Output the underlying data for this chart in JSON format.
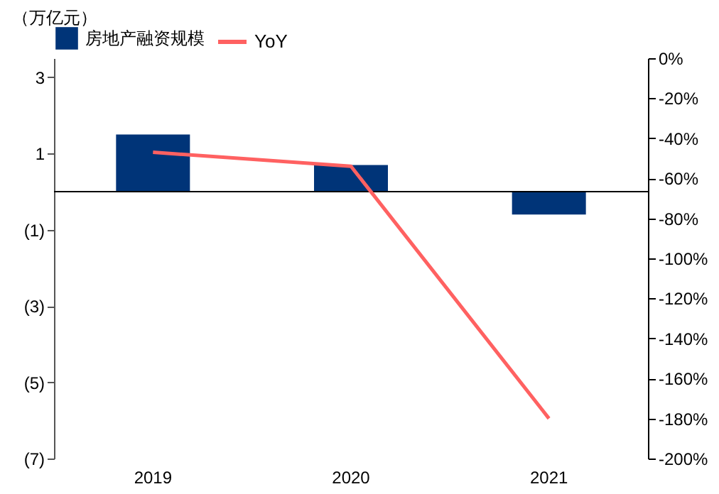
{
  "chart_data": {
    "type": "bar",
    "ylabel": "（万亿元）",
    "categories": [
      "2019",
      "2020",
      "2021"
    ],
    "series": [
      {
        "name": "房地产融资规模",
        "color": "#003478",
        "values": [
          1.5,
          0.7,
          -0.6
        ]
      },
      {
        "name": "YoY",
        "type": "line",
        "axis": "y2",
        "color": "#ff6161",
        "values": [
          -47,
          -54,
          -180
        ]
      }
    ],
    "ylim": [
      -7,
      3.5
    ],
    "yticks": [
      {
        "value": 3,
        "label": "3"
      },
      {
        "value": 1,
        "label": "1"
      },
      {
        "value": -1,
        "label": "(1)"
      },
      {
        "value": -3,
        "label": "(3)"
      },
      {
        "value": -5,
        "label": "(5)"
      },
      {
        "value": -7,
        "label": "(7)"
      }
    ],
    "y2lim": [
      -200,
      0
    ],
    "y2ticks": [
      {
        "value": 0,
        "label": "0%"
      },
      {
        "value": -20,
        "label": "-20%"
      },
      {
        "value": -40,
        "label": "-40%"
      },
      {
        "value": -60,
        "label": "-60%"
      },
      {
        "value": -80,
        "label": "-80%"
      },
      {
        "value": -100,
        "label": "-100%"
      },
      {
        "value": -120,
        "label": "-120%"
      },
      {
        "value": -140,
        "label": "-140%"
      },
      {
        "value": -160,
        "label": "-160%"
      },
      {
        "value": -180,
        "label": "-180%"
      },
      {
        "value": -200,
        "label": "-200%"
      }
    ],
    "legend": "top",
    "grid": false,
    "marker": "none",
    "line_style": "solid"
  }
}
